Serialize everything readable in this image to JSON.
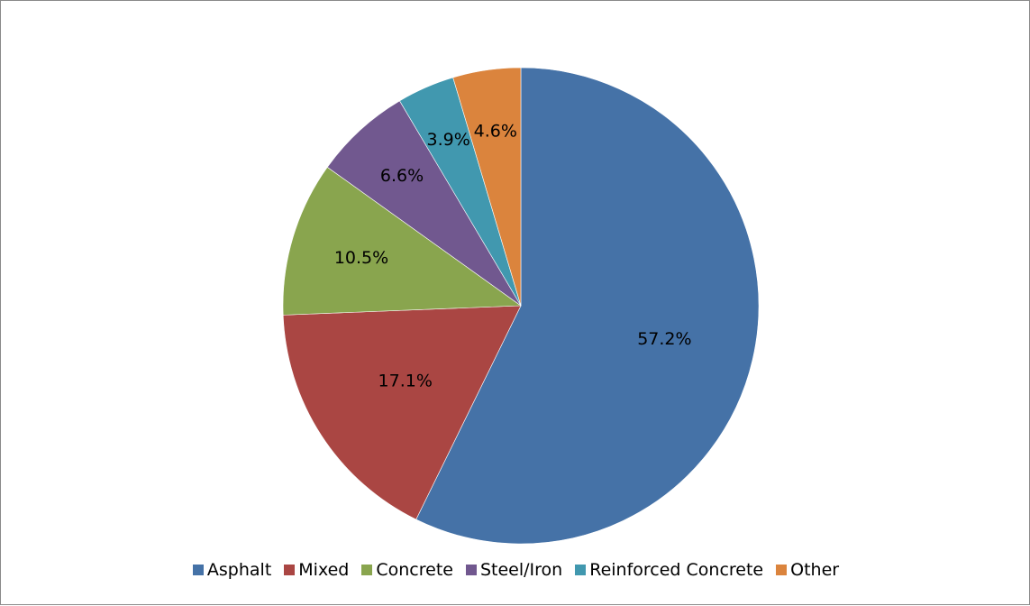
{
  "chart_data": {
    "type": "pie",
    "categories": [
      "Asphalt",
      "Mixed",
      "Concrete",
      "Steel/Iron",
      "Reinforced Concrete",
      "Other"
    ],
    "values": [
      57.2,
      17.1,
      10.5,
      6.6,
      3.9,
      4.6
    ],
    "labels": [
      "57.2%",
      "17.1%",
      "10.5%",
      "6.6%",
      "3.9%",
      "4.6%"
    ],
    "colors": [
      "#4572A7",
      "#AA4643",
      "#89A54E",
      "#71588F",
      "#4198AF",
      "#DB843D"
    ],
    "start_angle": "12 o'clock",
    "direction": "clockwise",
    "legend_position": "bottom"
  }
}
